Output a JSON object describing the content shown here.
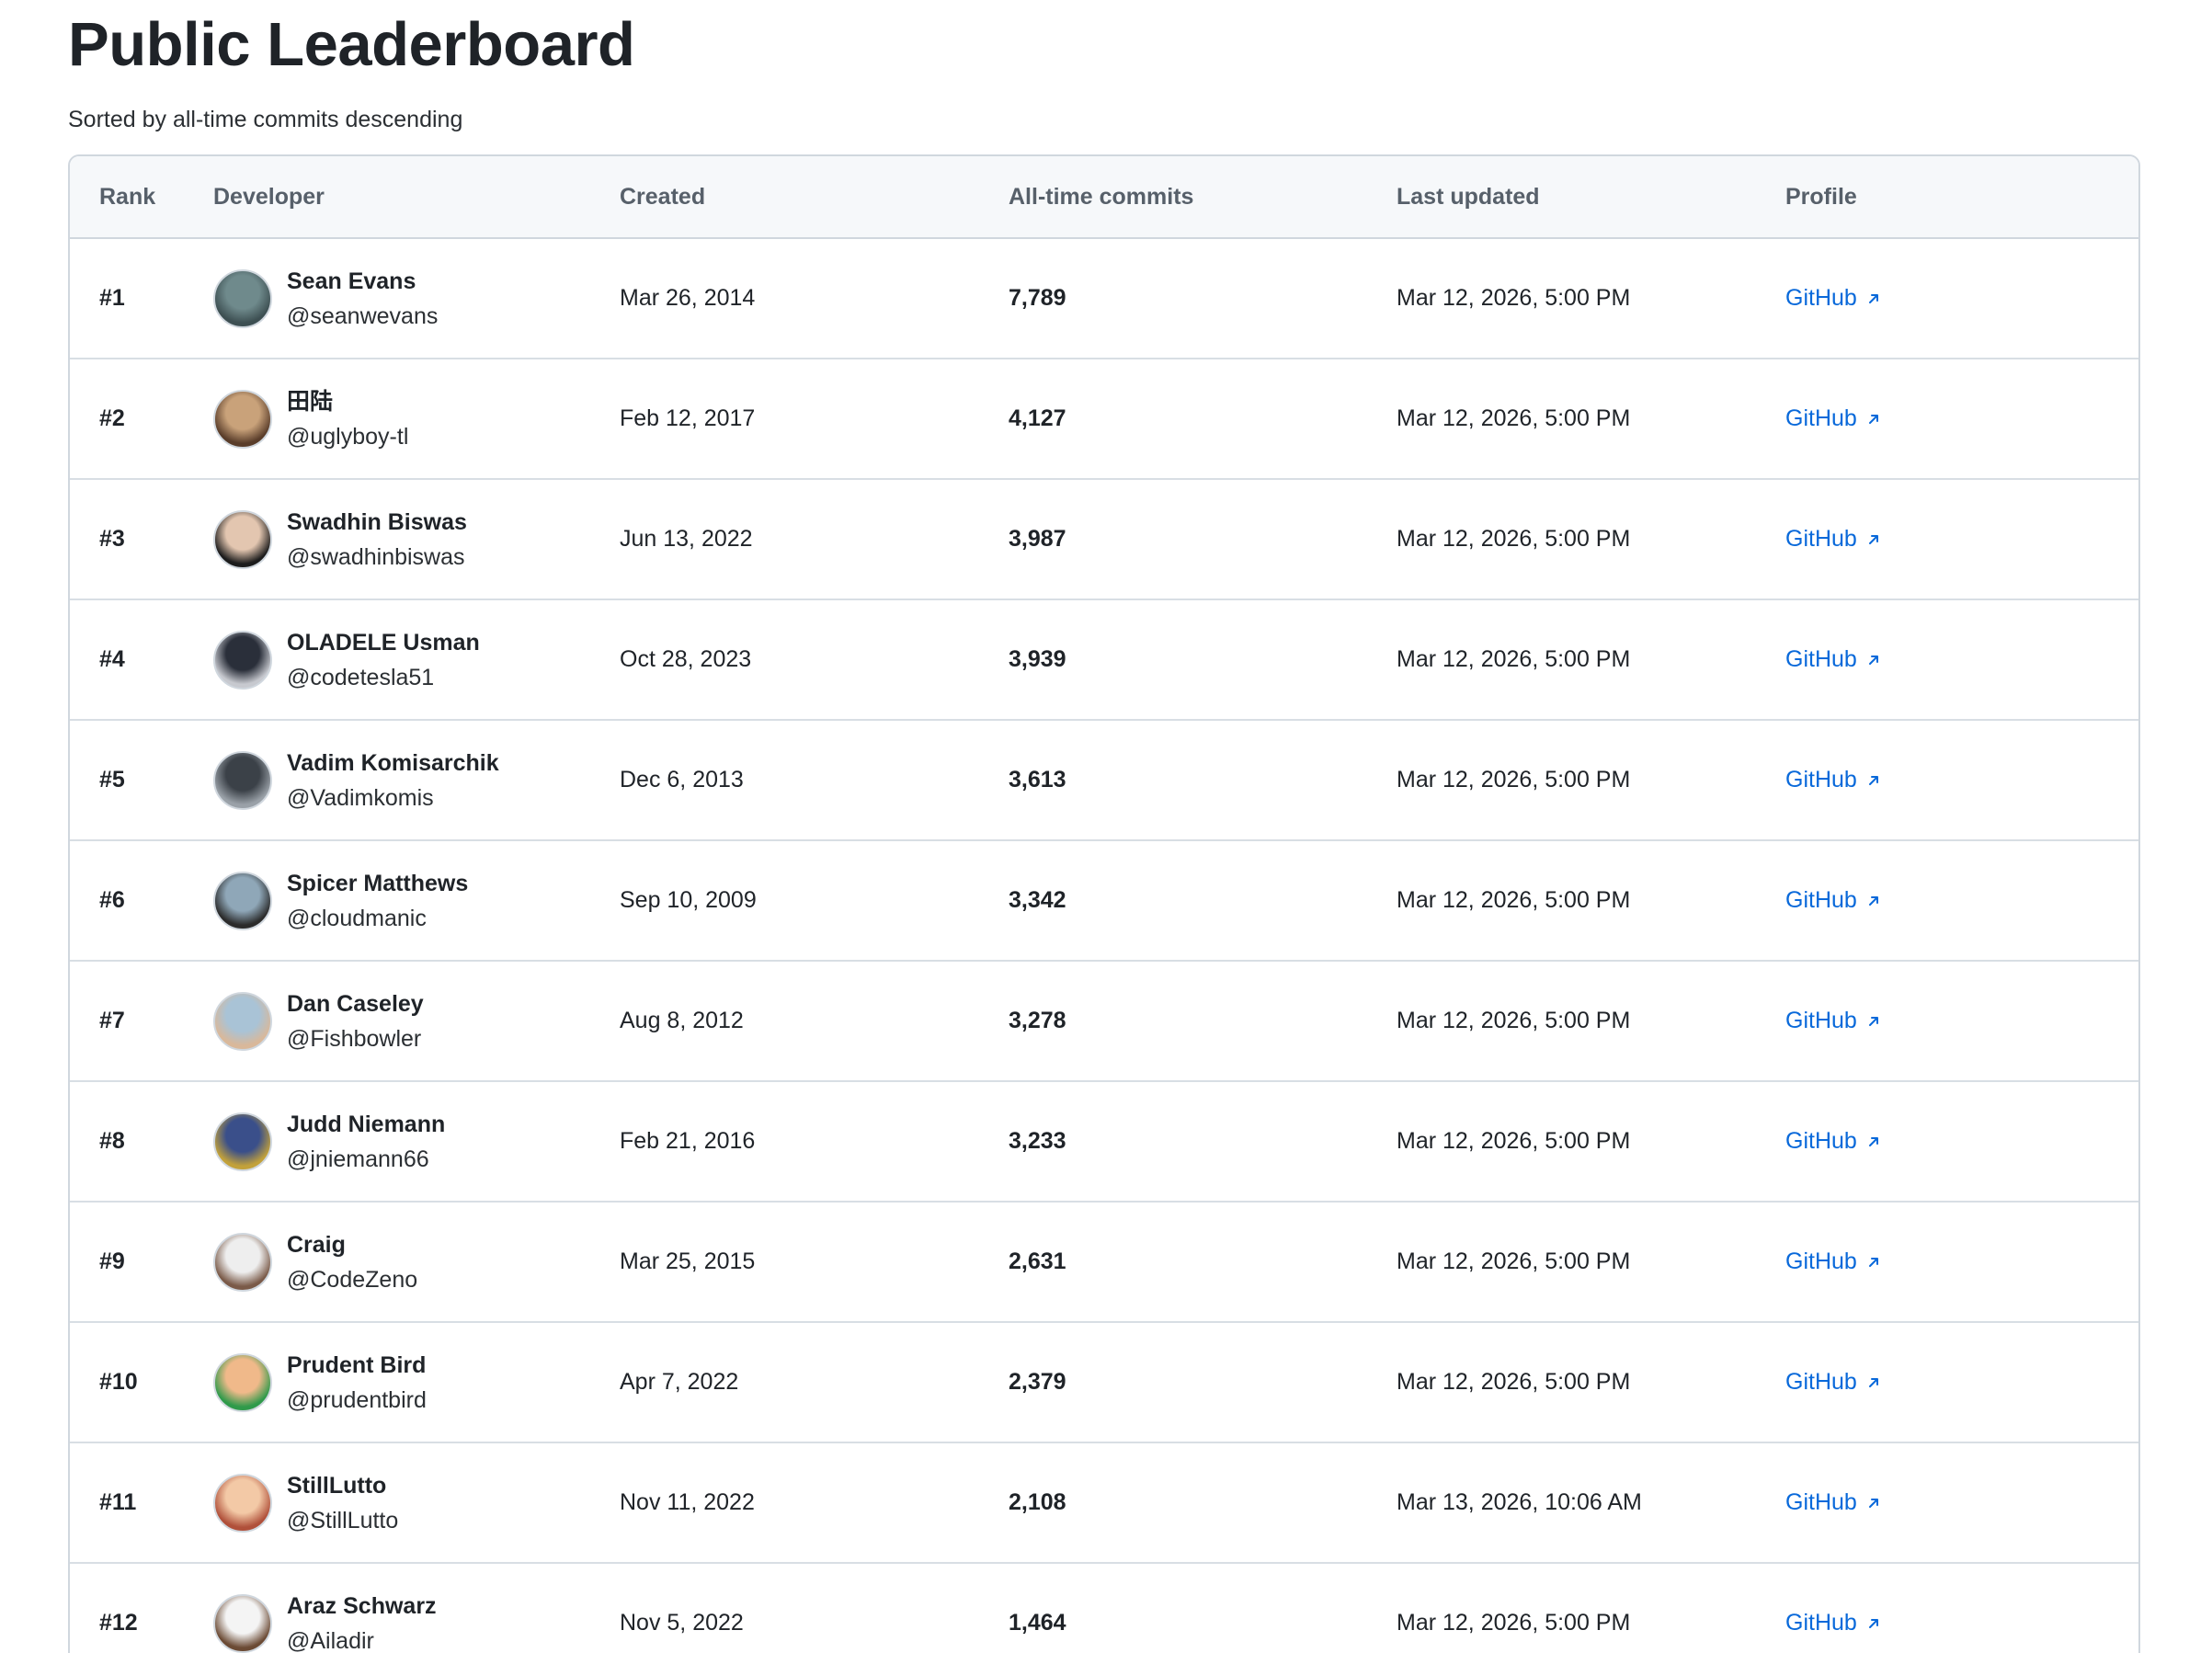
{
  "page": {
    "title": "Public Leaderboard",
    "subtitle": "Sorted by all-time commits descending"
  },
  "table": {
    "headers": {
      "rank": "Rank",
      "developer": "Developer",
      "created": "Created",
      "commits": "All-time commits",
      "updated": "Last updated",
      "profile": "Profile"
    },
    "link_icon": "external-link-icon",
    "rows": [
      {
        "rank": "#1",
        "name": "Sean Evans",
        "handle": "@seanwevans",
        "created": "Mar 26, 2014",
        "commits": "7,789",
        "updated": "Mar 12, 2026, 5:00 PM",
        "profile": "GitHub",
        "avatar_colors": [
          "#6f8a8c",
          "#3d4f52"
        ]
      },
      {
        "rank": "#2",
        "name": "田陆",
        "handle": "@uglyboy-tl",
        "created": "Feb 12, 2017",
        "commits": "4,127",
        "updated": "Mar 12, 2026, 5:00 PM",
        "profile": "GitHub",
        "avatar_colors": [
          "#c9a27a",
          "#5a3d2a"
        ]
      },
      {
        "rank": "#3",
        "name": "Swadhin Biswas",
        "handle": "@swadhinbiswas",
        "created": "Jun 13, 2022",
        "commits": "3,987",
        "updated": "Mar 12, 2026, 5:00 PM",
        "profile": "GitHub",
        "avatar_colors": [
          "#e3c6b0",
          "#1c1c1c"
        ]
      },
      {
        "rank": "#4",
        "name": "OLADELE Usman",
        "handle": "@codetesla51",
        "created": "Oct 28, 2023",
        "commits": "3,939",
        "updated": "Mar 12, 2026, 5:00 PM",
        "profile": "GitHub",
        "avatar_colors": [
          "#2a2f3a",
          "#c7c9cf"
        ]
      },
      {
        "rank": "#5",
        "name": "Vadim Komisarchik",
        "handle": "@Vadimkomis",
        "created": "Dec 6, 2013",
        "commits": "3,613",
        "updated": "Mar 12, 2026, 5:00 PM",
        "profile": "GitHub",
        "avatar_colors": [
          "#3b4148",
          "#9aa1a8"
        ]
      },
      {
        "rank": "#6",
        "name": "Spicer Matthews",
        "handle": "@cloudmanic",
        "created": "Sep 10, 2009",
        "commits": "3,342",
        "updated": "Mar 12, 2026, 5:00 PM",
        "profile": "GitHub",
        "avatar_colors": [
          "#8fa7b8",
          "#2b2b2b"
        ]
      },
      {
        "rank": "#7",
        "name": "Dan Caseley",
        "handle": "@Fishbowler",
        "created": "Aug 8, 2012",
        "commits": "3,278",
        "updated": "Mar 12, 2026, 5:00 PM",
        "profile": "GitHub",
        "avatar_colors": [
          "#a9c3d6",
          "#d9b89a"
        ]
      },
      {
        "rank": "#8",
        "name": "Judd Niemann",
        "handle": "@jniemann66",
        "created": "Feb 21, 2016",
        "commits": "3,233",
        "updated": "Mar 12, 2026, 5:00 PM",
        "profile": "GitHub",
        "avatar_colors": [
          "#3a4f8a",
          "#c2a13a"
        ]
      },
      {
        "rank": "#9",
        "name": "Craig",
        "handle": "@CodeZeno",
        "created": "Mar 25, 2015",
        "commits": "2,631",
        "updated": "Mar 12, 2026, 5:00 PM",
        "profile": "GitHub",
        "avatar_colors": [
          "#eeeeee",
          "#7a5a48"
        ]
      },
      {
        "rank": "#10",
        "name": "Prudent Bird",
        "handle": "@prudentbird",
        "created": "Apr 7, 2022",
        "commits": "2,379",
        "updated": "Mar 12, 2026, 5:00 PM",
        "profile": "GitHub",
        "avatar_colors": [
          "#f0b98a",
          "#2f9a4a"
        ]
      },
      {
        "rank": "#11",
        "name": "StillLutto",
        "handle": "@StillLutto",
        "created": "Nov 11, 2022",
        "commits": "2,108",
        "updated": "Mar 13, 2026, 10:06 AM",
        "profile": "GitHub",
        "avatar_colors": [
          "#f3c9a6",
          "#b0503a"
        ]
      },
      {
        "rank": "#12",
        "name": "Araz Schwarz",
        "handle": "@Ailadir",
        "created": "Nov 5, 2022",
        "commits": "1,464",
        "updated": "Mar 12, 2026, 5:00 PM",
        "profile": "GitHub",
        "avatar_colors": [
          "#f4f4f4",
          "#6b4a34"
        ]
      }
    ]
  }
}
